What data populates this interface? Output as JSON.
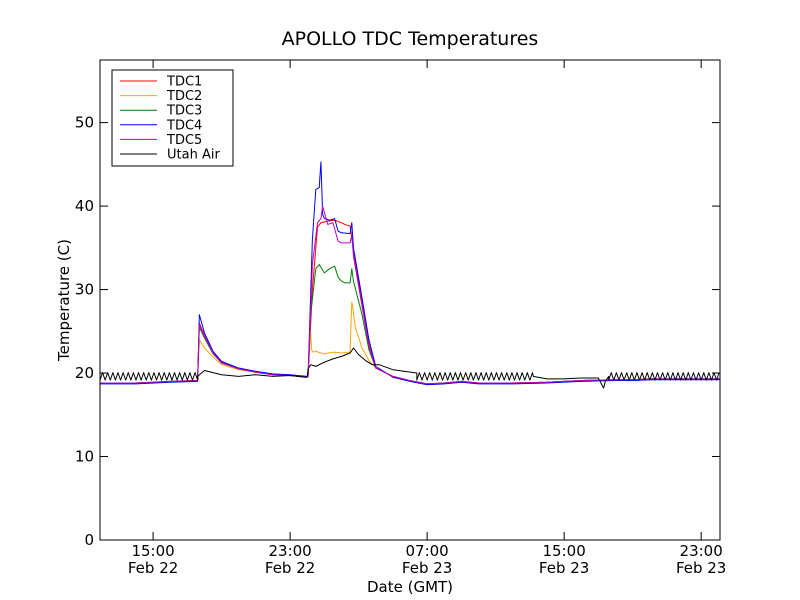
{
  "chart_data": {
    "type": "line",
    "title": "APOLLO TDC Temperatures",
    "xlabel": "Date (GMT)",
    "ylabel": "Temperature (C)",
    "x_units": "hours since Feb 22 00:00 GMT",
    "xlim": [
      11.9,
      48.1
    ],
    "ylim": [
      0,
      57.5
    ],
    "yticks": [
      0,
      10,
      20,
      30,
      40,
      50
    ],
    "xticks": [
      {
        "value": 15,
        "time": "15:00",
        "date": "Feb 22"
      },
      {
        "value": 23,
        "time": "23:00",
        "date": "Feb 22"
      },
      {
        "value": 31,
        "time": "07:00",
        "date": "Feb 23"
      },
      {
        "value": 39,
        "time": "15:00",
        "date": "Feb 23"
      },
      {
        "value": 47,
        "time": "23:00",
        "date": "Feb 23"
      }
    ],
    "grid": false,
    "legend_position": "top-left",
    "series": [
      {
        "name": "TDC1",
        "color": "#ff0000",
        "x": [
          11.9,
          14.0,
          16.0,
          17.6,
          17.7,
          18.0,
          18.5,
          19.0,
          20.0,
          21.0,
          22.0,
          23.0,
          24.0,
          24.05,
          24.3,
          24.6,
          24.8,
          25.2,
          25.6,
          26.0,
          26.2,
          26.5,
          26.6,
          26.7,
          27.2,
          27.6,
          28.0,
          29.0,
          30.0,
          31.0,
          32.0,
          33.0,
          34.0,
          36.0,
          38.0,
          40.0,
          42.0,
          43.0,
          44.0,
          46.0,
          48.1
        ],
        "y": [
          18.8,
          18.8,
          19.0,
          19.1,
          26.0,
          24.5,
          22.5,
          21.3,
          20.5,
          20.1,
          19.8,
          19.7,
          19.5,
          19.6,
          30.0,
          37.5,
          38.0,
          38.2,
          38.3,
          38.0,
          37.8,
          37.6,
          36.4,
          34.5,
          28.5,
          23.5,
          20.6,
          19.6,
          19.1,
          18.7,
          18.8,
          19.0,
          18.8,
          18.8,
          18.9,
          19.1,
          19.2,
          19.2,
          19.3,
          19.3,
          19.3
        ]
      },
      {
        "name": "TDC2",
        "color": "#ffa500",
        "x": [
          11.9,
          14.0,
          16.0,
          17.6,
          17.7,
          18.0,
          18.5,
          19.0,
          20.0,
          21.0,
          22.0,
          23.0,
          24.0,
          24.05,
          24.1,
          24.2,
          24.25,
          24.35,
          24.5,
          25.0,
          25.5,
          26.0,
          26.5,
          26.6,
          26.65,
          26.8,
          27.2,
          27.6,
          28.0,
          29.0,
          30.0,
          31.0,
          32.0,
          33.0,
          34.0,
          36.0,
          38.0,
          40.0,
          42.0,
          43.0,
          44.0,
          46.0,
          48.1
        ],
        "y": [
          18.8,
          18.8,
          19.0,
          19.1,
          24.0,
          23.0,
          21.9,
          21.0,
          20.4,
          20.1,
          19.8,
          19.7,
          19.5,
          19.6,
          23.0,
          25.0,
          22.8,
          22.5,
          22.6,
          22.3,
          22.5,
          22.4,
          22.5,
          28.5,
          28.0,
          25.5,
          23.0,
          21.5,
          20.6,
          19.6,
          19.1,
          18.7,
          18.8,
          19.0,
          18.8,
          18.8,
          18.9,
          19.1,
          19.2,
          19.2,
          19.3,
          19.3,
          19.3
        ]
      },
      {
        "name": "TDC3",
        "color": "#008000",
        "x": [
          11.9,
          14.0,
          16.0,
          17.6,
          17.7,
          18.0,
          18.5,
          19.0,
          20.0,
          21.0,
          22.0,
          23.0,
          24.0,
          24.05,
          24.2,
          24.5,
          24.7,
          25.0,
          25.3,
          25.6,
          25.8,
          26.0,
          26.2,
          26.5,
          26.6,
          26.7,
          27.2,
          27.6,
          28.0,
          29.0,
          30.0,
          31.0,
          32.0,
          33.0,
          34.0,
          36.0,
          38.0,
          40.0,
          42.0,
          43.0,
          44.0,
          46.0,
          48.1
        ],
        "y": [
          18.8,
          18.8,
          19.0,
          19.1,
          25.5,
          24.2,
          22.3,
          21.2,
          20.5,
          20.1,
          19.8,
          19.7,
          19.5,
          19.6,
          27.0,
          32.5,
          33.0,
          32.0,
          32.5,
          32.8,
          31.5,
          31.0,
          30.8,
          30.8,
          32.5,
          31.0,
          27.0,
          22.8,
          20.6,
          19.6,
          19.1,
          18.7,
          18.8,
          19.0,
          18.8,
          18.8,
          18.9,
          19.1,
          19.2,
          19.2,
          19.3,
          19.3,
          19.3
        ]
      },
      {
        "name": "TDC4",
        "color": "#0000ff",
        "x": [
          11.9,
          14.0,
          16.0,
          17.6,
          17.7,
          18.0,
          18.5,
          19.0,
          20.0,
          21.0,
          22.0,
          23.0,
          24.0,
          24.05,
          24.3,
          24.5,
          24.7,
          24.8,
          24.9,
          25.0,
          25.3,
          25.6,
          25.8,
          26.0,
          26.5,
          26.6,
          26.7,
          27.2,
          27.6,
          28.0,
          29.0,
          30.0,
          31.0,
          32.0,
          33.0,
          34.0,
          36.0,
          38.0,
          40.0,
          42.0,
          43.0,
          44.0,
          46.0,
          48.1
        ],
        "y": [
          18.7,
          18.7,
          18.9,
          19.0,
          27.0,
          24.8,
          22.6,
          21.4,
          20.6,
          20.2,
          19.9,
          19.8,
          19.6,
          19.7,
          36.0,
          42.0,
          42.2,
          45.3,
          39.0,
          38.5,
          38.3,
          38.5,
          37.0,
          36.8,
          36.7,
          38.0,
          35.0,
          29.0,
          24.0,
          20.8,
          19.5,
          19.0,
          18.6,
          18.7,
          18.9,
          18.7,
          18.7,
          18.8,
          19.0,
          19.1,
          19.1,
          19.2,
          19.2,
          19.2
        ]
      },
      {
        "name": "TDC5",
        "color": "#bf00bf",
        "x": [
          11.9,
          14.0,
          16.0,
          17.6,
          17.7,
          18.0,
          18.5,
          19.0,
          20.0,
          21.0,
          22.0,
          23.0,
          24.0,
          24.05,
          24.3,
          24.6,
          24.8,
          24.9,
          25.2,
          25.5,
          25.8,
          26.0,
          26.5,
          26.6,
          26.7,
          27.2,
          27.6,
          28.0,
          29.0,
          30.0,
          31.0,
          32.0,
          33.0,
          34.0,
          36.0,
          38.0,
          40.0,
          42.0,
          43.0,
          44.0,
          46.0,
          48.1
        ],
        "y": [
          18.8,
          18.8,
          19.0,
          19.1,
          25.8,
          24.4,
          22.4,
          21.2,
          20.5,
          20.1,
          19.8,
          19.7,
          19.5,
          19.6,
          33.0,
          38.0,
          38.5,
          40.0,
          37.8,
          38.0,
          35.8,
          35.6,
          35.6,
          36.5,
          34.0,
          28.0,
          23.2,
          20.6,
          19.6,
          19.1,
          18.7,
          18.8,
          19.0,
          18.8,
          18.8,
          18.9,
          19.1,
          19.2,
          19.2,
          19.3,
          19.3,
          19.3
        ]
      },
      {
        "name": "Utah Air",
        "color": "#000000",
        "oscillate": [
          [
            11.9,
            17.6
          ],
          [
            30.4,
            37.2
          ],
          [
            41.6,
            48.1
          ]
        ],
        "osc_amp": 0.45,
        "osc_period": 0.3,
        "osc_base": 19.6,
        "x": [
          17.6,
          18.0,
          19.0,
          20.0,
          21.0,
          22.0,
          23.0,
          23.9,
          24.0,
          24.05,
          24.2,
          24.5,
          25.0,
          25.5,
          26.0,
          26.5,
          26.7,
          27.0,
          27.4,
          27.8,
          28.2,
          29.0,
          30.4,
          37.2,
          38.0,
          39.0,
          40.0,
          41.0,
          41.3,
          41.4,
          41.6
        ],
        "y": [
          19.6,
          20.3,
          19.8,
          19.6,
          19.8,
          19.6,
          19.7,
          19.5,
          19.6,
          20.5,
          21.0,
          20.8,
          21.3,
          21.7,
          22.0,
          22.4,
          23.0,
          22.2,
          21.5,
          21.0,
          21.0,
          20.4,
          20.0,
          19.6,
          19.3,
          19.3,
          19.4,
          19.4,
          18.2,
          19.0,
          19.6
        ]
      }
    ]
  }
}
